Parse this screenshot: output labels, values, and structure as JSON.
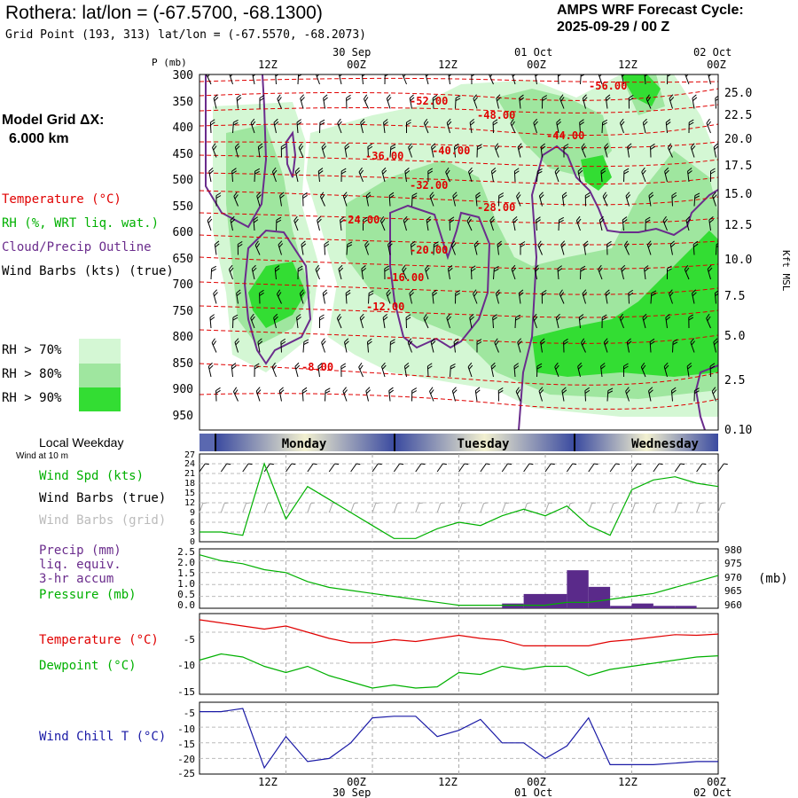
{
  "header": {
    "title": "Rothera:  lat/lon = (-67.5700, -68.1300)",
    "grid_point": "Grid Point (193, 313) lat/lon = (-67.5570, -68.2073)",
    "cycle_title": "AMPS WRF Forecast Cycle:",
    "cycle_value": "2025-09-29 / 00  Z"
  },
  "model_grid": {
    "label": "Model Grid ΔX:",
    "value": "6.000 km"
  },
  "legend": {
    "temperature": {
      "label": "Temperature (°C)",
      "color": "#e00000"
    },
    "rh": {
      "label": "RH (%, WRT liq. wat.)",
      "color": "#00b000"
    },
    "cloud": {
      "label": "Cloud/Precip Outline",
      "color": "#6a2c8c"
    },
    "wind": {
      "label": "Wind Barbs (kts) (true)",
      "color": "#000000"
    },
    "rh70": {
      "label": "RH > 70%",
      "color": "#d4f7d4"
    },
    "rh80": {
      "label": "RH > 80%",
      "color": "#9fe69f"
    },
    "rh90": {
      "label": "RH > 90%",
      "color": "#33dd33"
    }
  },
  "time_axis": {
    "top_dates": [
      "30 Sep",
      "01 Oct",
      "02 Oct"
    ],
    "hours": [
      "12Z",
      "00Z",
      "12Z",
      "00Z",
      "12Z",
      "00Z"
    ],
    "bottom_dates": [
      "30 Sep",
      "01 Oct",
      "02 Oct"
    ]
  },
  "cross_section": {
    "p_label": "P (mb)",
    "pressure_ticks": [
      "300",
      "350",
      "400",
      "450",
      "500",
      "550",
      "600",
      "650",
      "700",
      "750",
      "800",
      "850",
      "900",
      "950"
    ],
    "height_ticks": [
      "25.0",
      "22.5",
      "20.0",
      "17.5",
      "15.0",
      "12.5",
      "10.0",
      "7.5",
      "5.0",
      "2.5",
      "0.10"
    ],
    "height_axis_label": "Kft MSL",
    "temp_labels": [
      "-56.00",
      "-52.00",
      "-48.00",
      "-44.00",
      "-40.00",
      "-36.00",
      "-32.00",
      "-28.00",
      "-24.00",
      "-20.00",
      "-16.00",
      "-12.00",
      "-8.00"
    ]
  },
  "weekday_bar": {
    "label": "Local Weekday",
    "days": [
      "Monday",
      "Tuesday",
      "Wednesday"
    ]
  },
  "wind_panel": {
    "subtitle": "Wind at 10 m",
    "speed_label": "Wind Spd (kts)",
    "barbs_true_label": "Wind Barbs (true)",
    "barbs_grid_label": "Wind Barbs (grid)",
    "yticks": [
      "27",
      "24",
      "21",
      "18",
      "15",
      "12",
      "9",
      "6",
      "3",
      "0"
    ]
  },
  "precip_panel": {
    "label1": "Precip (mm)",
    "label2": "liq. equiv.",
    "label3": "3-hr accum",
    "pressure_label": "Pressure (mb)",
    "yticks_left": [
      "2.5",
      "2.0",
      "1.5",
      "1.0",
      "0.5",
      "0.0"
    ],
    "yticks_right": [
      "980",
      "975",
      "970",
      "965",
      "960"
    ],
    "right_unit": "(mb)"
  },
  "temp_panel": {
    "temp_label": "Temperature (°C)",
    "dew_label": "Dewpoint (°C)",
    "yticks": [
      "-5",
      "-10",
      "-15"
    ]
  },
  "chill_panel": {
    "label": "Wind Chill T (°C)",
    "yticks": [
      "-5",
      "-10",
      "-15",
      "-20",
      "-25"
    ]
  },
  "chart_data": {
    "type": "line",
    "x_hours": [
      0,
      3,
      6,
      9,
      12,
      15,
      18,
      21,
      24,
      27,
      30,
      33,
      36,
      39,
      42,
      45,
      48,
      51,
      54,
      57,
      60,
      63,
      66,
      69,
      72
    ],
    "wind_speed_kts": [
      3,
      3,
      2,
      24,
      7,
      17,
      13,
      9,
      5,
      1,
      1,
      4,
      6,
      5,
      8,
      10,
      8,
      11,
      5,
      2,
      16,
      19,
      20,
      18,
      17
    ],
    "precip_mm": [
      0,
      0,
      0,
      0,
      0,
      0,
      0,
      0,
      0,
      0,
      0,
      0,
      0,
      0,
      0.2,
      0.6,
      0.6,
      1.6,
      0.9,
      0.1,
      0.2,
      0.1,
      0.1,
      0
    ],
    "pressure_mb": [
      978,
      976,
      975,
      973,
      972,
      969,
      967,
      966,
      965,
      964,
      963,
      962,
      961,
      961,
      961,
      961,
      961,
      962,
      962,
      963,
      964,
      965,
      967,
      969,
      971
    ],
    "temperature_c": [
      -3,
      -3.5,
      -4,
      -4.5,
      -4,
      -5,
      -6,
      -6.7,
      -6.7,
      -6.2,
      -6.5,
      -6,
      -5.5,
      -6,
      -6.3,
      -7.2,
      -7.2,
      -7.2,
      -7.2,
      -6.5,
      -6.2,
      -5.8,
      -5.4,
      -5.5,
      -5.3
    ],
    "dewpoint_c": [
      -9.5,
      -8.5,
      -9,
      -10.5,
      -11.5,
      -10.5,
      -12,
      -13,
      -14,
      -13.5,
      -14,
      -13.8,
      -11.5,
      -11.8,
      -10.5,
      -11,
      -10.5,
      -10.5,
      -12,
      -11,
      -10.5,
      -10,
      -9.5,
      -9,
      -8.8
    ],
    "wind_chill_c": [
      -5,
      -5,
      -4,
      -23,
      -13,
      -21,
      -20,
      -15,
      -7,
      -6.5,
      -6.5,
      -13,
      -11,
      -7.5,
      -15,
      -15,
      -20,
      -16,
      -7,
      -22,
      -22,
      -22,
      -21.5,
      -21,
      -21
    ],
    "ylim_wind": [
      0,
      27
    ],
    "ylim_precip": [
      0,
      2.5
    ],
    "ylim_pressure": [
      960,
      980
    ],
    "ylim_temp": [
      -15,
      -2
    ],
    "ylim_chill": [
      -25,
      -2
    ]
  }
}
